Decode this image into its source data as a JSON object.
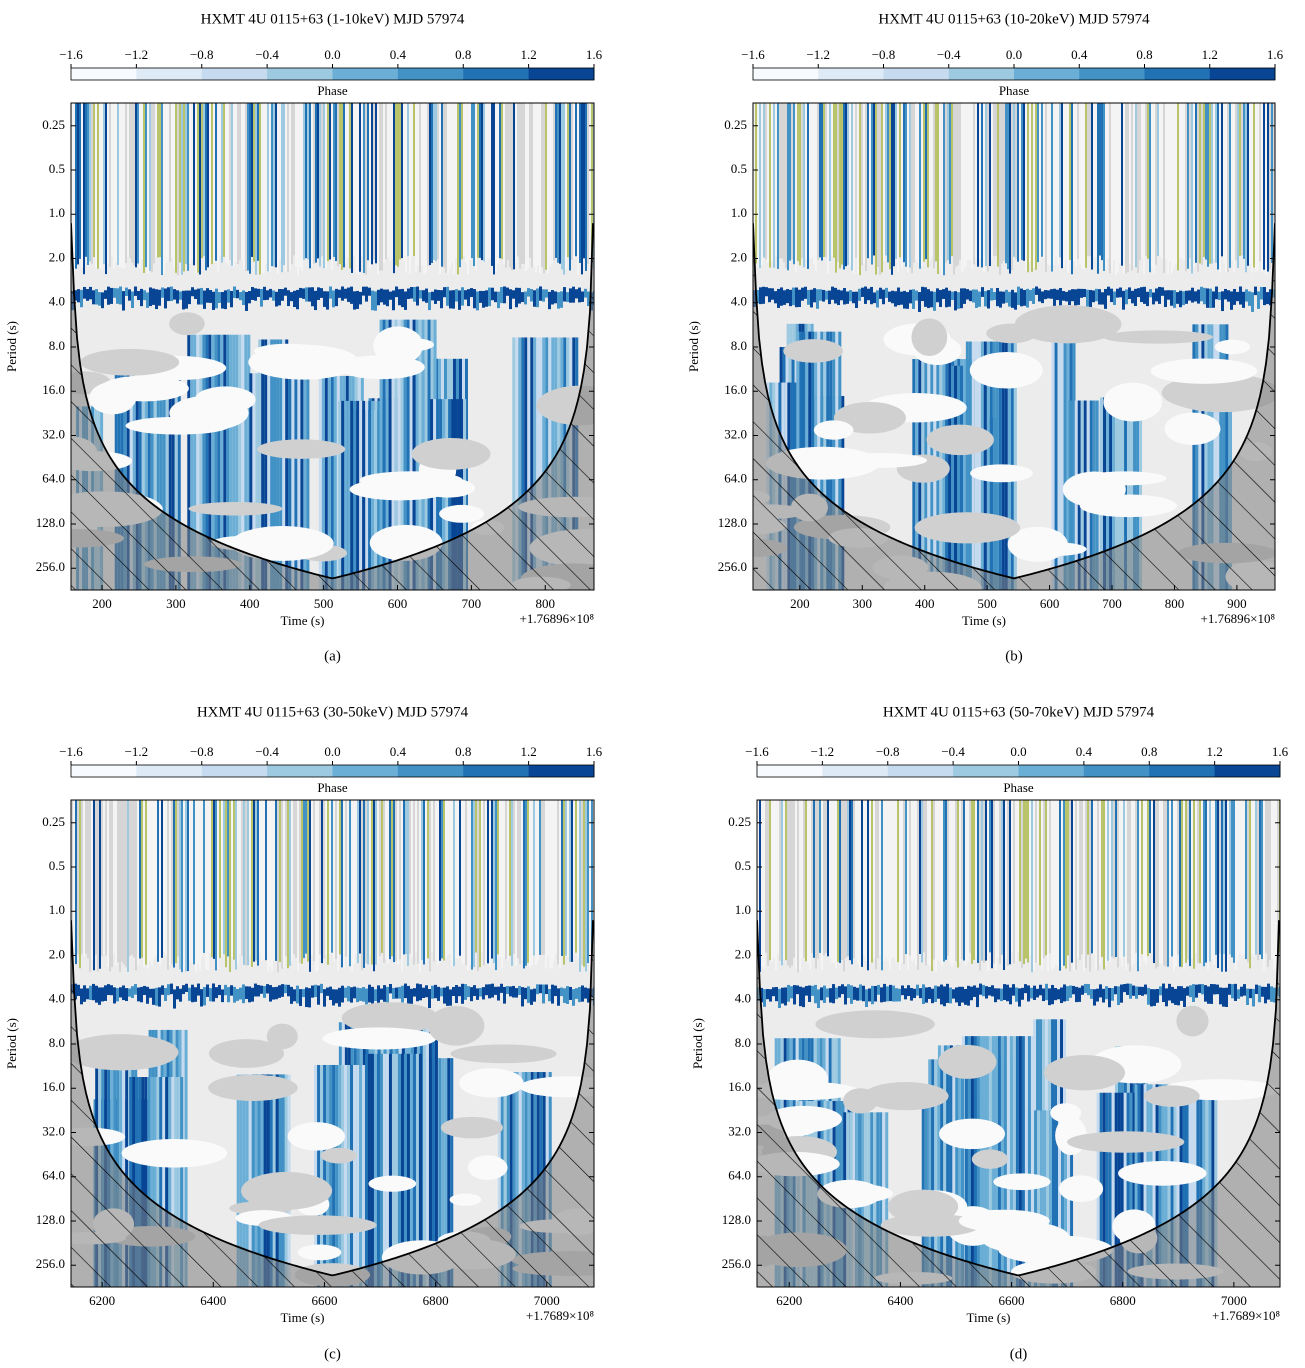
{
  "chart_data": [
    {
      "type": "wavelet",
      "title": "HXMT 4U 0115+63 (1-10keV) MJD 57974",
      "caption": "(a)",
      "xlabel": "Time (s)",
      "ylabel": "Period (s)",
      "x_offset_label": "+1.76896×10⁸",
      "xlim": [
        158,
        866
      ],
      "xticks": [
        200,
        300,
        400,
        500,
        600,
        700,
        800
      ],
      "ylim": [
        0.175,
        360
      ],
      "log_y": true,
      "yticks": [
        0.25,
        0.5,
        {
          "value": 1,
          "label": "1.0"
        },
        {
          "value": 2,
          "label": "2.0"
        },
        {
          "value": 4,
          "label": "4.0"
        },
        {
          "value": 8,
          "label": "8.0"
        },
        {
          "value": 16,
          "label": "16.0"
        },
        {
          "value": 32,
          "label": "32.0"
        },
        {
          "value": 64,
          "label": "64.0"
        },
        {
          "value": 128,
          "label": "128.0"
        },
        {
          "value": 256,
          "label": "256.0"
        }
      ],
      "colorbar_label": "Phase",
      "colorbar_lim": [
        -1.6,
        1.6
      ],
      "colorbar_ticks": [
        {
          "value": -1.6,
          "label": "−1.6"
        },
        {
          "value": -1.2,
          "label": "−1.2"
        },
        {
          "value": -0.8,
          "label": "−0.8"
        },
        {
          "value": -0.4,
          "label": "−0.4"
        },
        {
          "value": 0,
          "label": "0.0"
        },
        0.4,
        0.8,
        1.2,
        1.6
      ],
      "colors": [
        "#f7fbff",
        "#deebf7",
        "#c6dbef",
        "#9ecae1",
        "#6baed6",
        "#4292c6",
        "#2171b5",
        "#084594"
      ]
    },
    {
      "type": "wavelet",
      "title": "HXMT 4U 0115+63 (10-20keV) MJD 57974",
      "caption": "(b)",
      "xlabel": "Time (s)",
      "ylabel": "Period (s)",
      "x_offset_label": "+1.76896×10⁸",
      "xlim": [
        125,
        961
      ],
      "xticks": [
        200,
        300,
        400,
        500,
        600,
        700,
        800,
        900
      ],
      "ylim": [
        0.175,
        360
      ],
      "log_y": true,
      "yticks": [
        0.25,
        0.5,
        {
          "value": 1,
          "label": "1.0"
        },
        {
          "value": 2,
          "label": "2.0"
        },
        {
          "value": 4,
          "label": "4.0"
        },
        {
          "value": 8,
          "label": "8.0"
        },
        {
          "value": 16,
          "label": "16.0"
        },
        {
          "value": 32,
          "label": "32.0"
        },
        {
          "value": 64,
          "label": "64.0"
        },
        {
          "value": 128,
          "label": "128.0"
        },
        {
          "value": 256,
          "label": "256.0"
        }
      ],
      "colorbar_label": "Phase",
      "colorbar_lim": [
        -1.6,
        1.6
      ],
      "colorbar_ticks": [
        {
          "value": -1.6,
          "label": "−1.6"
        },
        {
          "value": -1.2,
          "label": "−1.2"
        },
        {
          "value": -0.8,
          "label": "−0.8"
        },
        {
          "value": -0.4,
          "label": "−0.4"
        },
        {
          "value": 0,
          "label": "0.0"
        },
        0.4,
        0.8,
        1.2,
        1.6
      ],
      "colors": [
        "#f7fbff",
        "#deebf7",
        "#c6dbef",
        "#9ecae1",
        "#6baed6",
        "#4292c6",
        "#2171b5",
        "#084594"
      ]
    },
    {
      "type": "wavelet",
      "title": "HXMT 4U 0115+63 (30-50keV) MJD 57974",
      "caption": "(c)",
      "xlabel": "Time (s)",
      "ylabel": "Period (s)",
      "x_offset_label": "+1.7689×10⁸",
      "xlim": [
        6144,
        7085
      ],
      "xticks": [
        6200,
        6400,
        6600,
        6800,
        7000
      ],
      "ylim": [
        0.175,
        360
      ],
      "log_y": true,
      "yticks": [
        0.25,
        0.5,
        {
          "value": 1,
          "label": "1.0"
        },
        {
          "value": 2,
          "label": "2.0"
        },
        {
          "value": 4,
          "label": "4.0"
        },
        {
          "value": 8,
          "label": "8.0"
        },
        {
          "value": 16,
          "label": "16.0"
        },
        {
          "value": 32,
          "label": "32.0"
        },
        {
          "value": 64,
          "label": "64.0"
        },
        {
          "value": 128,
          "label": "128.0"
        },
        {
          "value": 256,
          "label": "256.0"
        }
      ],
      "colorbar_label": "Phase",
      "colorbar_lim": [
        -1.6,
        1.6
      ],
      "colorbar_ticks": [
        {
          "value": -1.6,
          "label": "−1.6"
        },
        {
          "value": -1.2,
          "label": "−1.2"
        },
        {
          "value": -0.8,
          "label": "−0.8"
        },
        {
          "value": -0.4,
          "label": "−0.4"
        },
        {
          "value": 0,
          "label": "0.0"
        },
        0.4,
        0.8,
        1.2,
        1.6
      ],
      "colors": [
        "#f7fbff",
        "#deebf7",
        "#c6dbef",
        "#9ecae1",
        "#6baed6",
        "#4292c6",
        "#2171b5",
        "#084594"
      ]
    },
    {
      "type": "wavelet",
      "title": "HXMT 4U 0115+63 (50-70keV) MJD 57974",
      "caption": "(d)",
      "xlabel": "Time (s)",
      "ylabel": "Period (s)",
      "x_offset_label": "+1.7689×10⁸",
      "xlim": [
        6142,
        7083
      ],
      "xticks": [
        6200,
        6400,
        6600,
        6800,
        7000
      ],
      "ylim": [
        0.175,
        360
      ],
      "log_y": true,
      "yticks": [
        0.25,
        0.5,
        {
          "value": 1,
          "label": "1.0"
        },
        {
          "value": 2,
          "label": "2.0"
        },
        {
          "value": 4,
          "label": "4.0"
        },
        {
          "value": 8,
          "label": "8.0"
        },
        {
          "value": 16,
          "label": "16.0"
        },
        {
          "value": 32,
          "label": "32.0"
        },
        {
          "value": 64,
          "label": "64.0"
        },
        {
          "value": 128,
          "label": "128.0"
        },
        {
          "value": 256,
          "label": "256.0"
        }
      ],
      "colorbar_label": "Phase",
      "colorbar_lim": [
        -1.6,
        1.6
      ],
      "colorbar_ticks": [
        {
          "value": -1.6,
          "label": "−1.6"
        },
        {
          "value": -1.2,
          "label": "−1.2"
        },
        {
          "value": -0.8,
          "label": "−0.8"
        },
        {
          "value": -0.4,
          "label": "−0.4"
        },
        {
          "value": 0,
          "label": "0.0"
        },
        0.4,
        0.8,
        1.2,
        1.6
      ],
      "colors": [
        "#f7fbff",
        "#deebf7",
        "#c6dbef",
        "#9ecae1",
        "#6baed6",
        "#4292c6",
        "#2171b5",
        "#084594"
      ]
    }
  ]
}
